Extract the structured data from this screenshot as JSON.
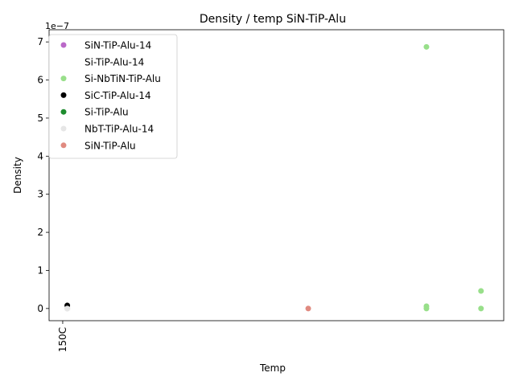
{
  "chart_data": {
    "type": "scatter",
    "title": "Density / temp SiN-TiP-Alu",
    "xlabel": "Temp",
    "ylabel": "Density",
    "y_scale_label": "1e−7",
    "x_categorical_ticks": [
      "150C"
    ],
    "xlim": [
      0,
      100
    ],
    "ylim": [
      -0.32,
      7.32
    ],
    "y_ticks": [
      "0",
      "1",
      "2",
      "3",
      "4",
      "5",
      "6",
      "7"
    ],
    "y_tick_values": [
      0,
      1,
      2,
      3,
      4,
      5,
      6,
      7
    ],
    "grid": false,
    "legend_position": "upper-left",
    "series": [
      {
        "name": "SiN-TiP-Alu-14",
        "color": "#ba68c8",
        "points": [
          {
            "x": 4,
            "y": 0.0
          }
        ]
      },
      {
        "name": "Si-TiP-Alu-14",
        "color": "#ffffff",
        "points": [
          {
            "x": 4,
            "y": 0.0
          }
        ]
      },
      {
        "name": "Si-NbTiN-TiP-Alu",
        "color": "#98df8a",
        "points": [
          {
            "x": 83,
            "y": 6.87
          },
          {
            "x": 95,
            "y": 0.46
          },
          {
            "x": 83,
            "y": 0.06
          },
          {
            "x": 83,
            "y": 0.0
          },
          {
            "x": 95,
            "y": 0.0
          }
        ]
      },
      {
        "name": "SiC-TiP-Alu-14",
        "color": "#000000",
        "points": [
          {
            "x": 4,
            "y": 0.08
          }
        ]
      },
      {
        "name": "Si-TiP-Alu",
        "color": "#1e8c2e",
        "points": []
      },
      {
        "name": "NbT-TiP-Alu-14",
        "color": "#e6e6e6",
        "points": [
          {
            "x": 4,
            "y": 0.0
          }
        ]
      },
      {
        "name": "SiN-TiP-Alu",
        "color": "#e08a80",
        "points": [
          {
            "x": 57,
            "y": 0.0
          }
        ]
      }
    ]
  }
}
